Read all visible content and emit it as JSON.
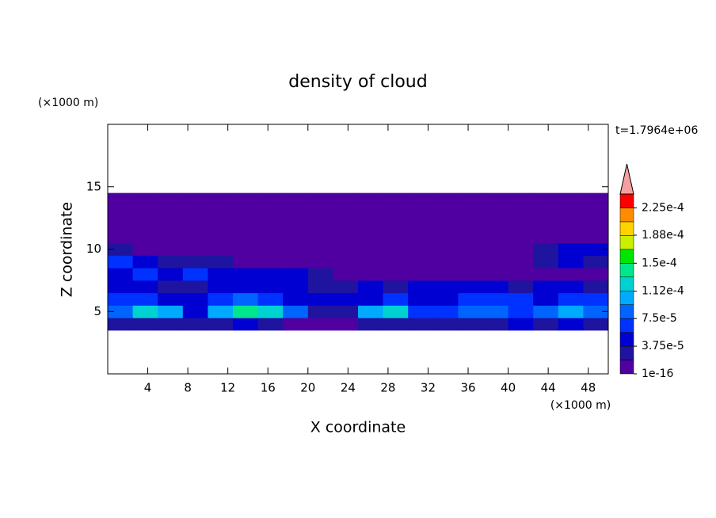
{
  "chart_data": {
    "type": "contour",
    "title": "density of cloud",
    "x_label": "X coordinate",
    "y_label": "Z coordinate",
    "x_unit": "(×1000 m)",
    "y_unit": "(×1000 m)",
    "time_label": "t=1.7964e+06",
    "xlim": [
      0,
      50
    ],
    "ylim": [
      0,
      20
    ],
    "xticks": [
      4,
      8,
      12,
      16,
      20,
      24,
      28,
      32,
      36,
      40,
      44,
      48
    ],
    "yticks": [
      5,
      10,
      15
    ],
    "x": [
      1.25,
      3.75,
      6.25,
      8.75,
      11.25,
      13.75,
      16.25,
      18.75,
      21.25,
      23.75,
      26.25,
      28.75,
      31.25,
      33.75,
      36.25,
      38.75,
      41.25,
      43.75,
      46.25,
      48.75
    ],
    "z": [
      4,
      5,
      6,
      7,
      8,
      9,
      10,
      11,
      12,
      13,
      14
    ],
    "values": [
      [
        2e-05,
        3e-05,
        2e-05,
        2e-05,
        3e-05,
        4e-05,
        3e-05,
        1e-05,
        5e-06,
        5e-06,
        2e-05,
        3e-05,
        2e-05,
        3e-05,
        2e-05,
        3e-05,
        4e-05,
        3e-05,
        4e-05,
        3e-05
      ],
      [
        8e-05,
        0.00012,
        0.0001,
        5e-05,
        0.00011,
        0.00014,
        0.00012,
        9e-05,
        3e-05,
        2e-05,
        0.00011,
        0.00012,
        7e-05,
        6e-05,
        8e-05,
        9e-05,
        7e-05,
        8e-05,
        0.0001,
        8e-05
      ],
      [
        6e-05,
        7e-05,
        5e-05,
        4e-05,
        6e-05,
        8e-05,
        7e-05,
        5e-05,
        4e-05,
        4e-05,
        5e-05,
        6e-05,
        5e-05,
        4e-05,
        6e-05,
        7e-05,
        6e-05,
        5e-05,
        6e-05,
        6e-05
      ],
      [
        4e-05,
        5e-05,
        3e-05,
        3e-05,
        4e-05,
        5e-05,
        4e-05,
        4e-05,
        3e-05,
        3e-05,
        4e-05,
        3e-05,
        4e-05,
        5e-05,
        5e-05,
        4e-05,
        3e-05,
        4e-05,
        4e-05,
        3e-05
      ],
      [
        5e-05,
        6e-05,
        5e-05,
        6e-05,
        5e-05,
        4e-05,
        5e-05,
        4e-05,
        2e-05,
        1e-05,
        1e-05,
        1e-05,
        1e-05,
        5e-06,
        5e-06,
        5e-06,
        5e-06,
        1e-05,
        5e-06,
        5e-06
      ],
      [
        6e-05,
        4e-05,
        3e-05,
        2e-05,
        2e-05,
        5e-06,
        5e-06,
        5e-06,
        5e-06,
        5e-06,
        5e-06,
        5e-06,
        5e-06,
        5e-06,
        5e-06,
        5e-06,
        5e-06,
        2e-05,
        4e-05,
        2e-05
      ],
      [
        3e-05,
        5e-06,
        5e-06,
        5e-06,
        5e-06,
        5e-06,
        5e-06,
        5e-06,
        5e-06,
        5e-06,
        5e-06,
        5e-06,
        5e-06,
        5e-06,
        5e-06,
        5e-06,
        5e-06,
        3e-05,
        5e-05,
        4e-05
      ],
      [
        5e-06,
        5e-06,
        5e-06,
        5e-06,
        5e-06,
        5e-06,
        5e-06,
        5e-06,
        5e-06,
        5e-06,
        5e-06,
        5e-06,
        5e-06,
        5e-06,
        5e-06,
        5e-06,
        5e-06,
        5e-06,
        5e-06,
        5e-06
      ],
      [
        5e-06,
        5e-06,
        5e-06,
        5e-06,
        5e-06,
        5e-06,
        5e-06,
        5e-06,
        5e-06,
        5e-06,
        5e-06,
        5e-06,
        5e-06,
        5e-06,
        5e-06,
        5e-06,
        5e-06,
        5e-06,
        5e-06,
        5e-06
      ],
      [
        5e-06,
        5e-06,
        5e-06,
        5e-06,
        5e-06,
        5e-06,
        5e-06,
        5e-06,
        5e-06,
        5e-06,
        5e-06,
        5e-06,
        5e-06,
        5e-06,
        5e-06,
        5e-06,
        5e-06,
        5e-06,
        5e-06,
        5e-06
      ],
      [
        5e-06,
        5e-06,
        5e-06,
        5e-06,
        5e-06,
        5e-06,
        5e-06,
        5e-06,
        5e-06,
        5e-06,
        5e-06,
        5e-06,
        5e-06,
        5e-06,
        5e-06,
        5e-06,
        5e-06,
        5e-06,
        5e-06,
        5e-06
      ]
    ],
    "levels": [
      1e-16,
      1.875e-05,
      3.75e-05,
      5.625e-05,
      7.5e-05,
      9.375e-05,
      0.0001125,
      0.00013125,
      0.00015,
      0.00016875,
      0.0001875,
      0.00020625,
      0.000225,
      0.00024375
    ],
    "colors": [
      "#5000a0",
      "#1e14a0",
      "#0000d2",
      "#0032ff",
      "#0064ff",
      "#00aaff",
      "#00d2d2",
      "#00e68c",
      "#00e600",
      "#c8f000",
      "#ffd200",
      "#ff8c00",
      "#ff0000"
    ],
    "extend_color": "#f4a0a0",
    "colorbar_ticks": [
      {
        "value": 1e-16,
        "label": "1e-16"
      },
      {
        "value": 3.75e-05,
        "label": "3.75e-5"
      },
      {
        "value": 7.5e-05,
        "label": "7.5e-5"
      },
      {
        "value": 0.000112,
        "label": "1.12e-4"
      },
      {
        "value": 0.00015,
        "label": "1.5e-4"
      },
      {
        "value": 0.000188,
        "label": "1.88e-4"
      },
      {
        "value": 0.000225,
        "label": "2.25e-4"
      }
    ]
  }
}
